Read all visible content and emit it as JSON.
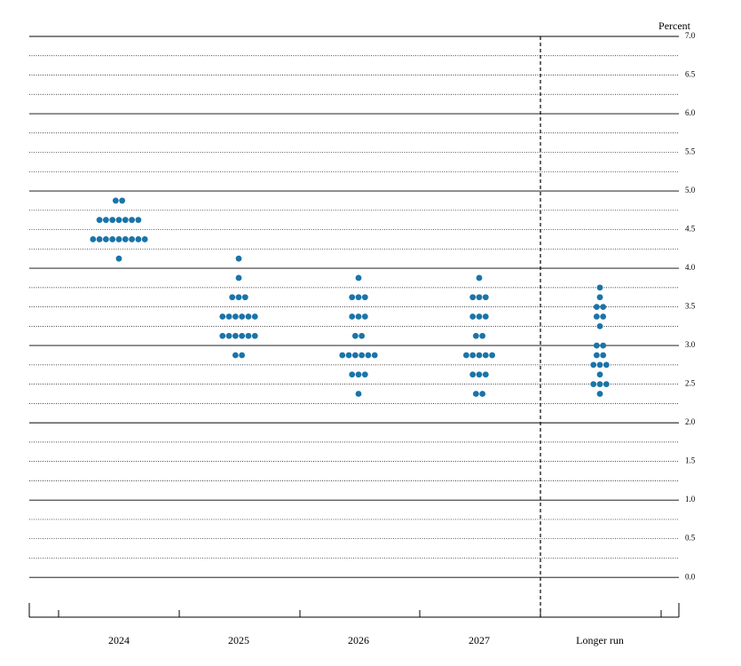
{
  "chart_data": {
    "type": "dot",
    "y_label": "Percent",
    "categories": [
      "2024",
      "2025",
      "2026",
      "2027",
      "Longer run"
    ],
    "color": "#1a74a8",
    "values": [
      [
        4.875,
        4.875,
        4.625,
        4.625,
        4.625,
        4.625,
        4.625,
        4.625,
        4.625,
        4.375,
        4.375,
        4.375,
        4.375,
        4.375,
        4.375,
        4.375,
        4.375,
        4.375,
        4.125
      ],
      [
        4.125,
        3.875,
        3.625,
        3.625,
        3.625,
        3.375,
        3.375,
        3.375,
        3.375,
        3.375,
        3.375,
        3.125,
        3.125,
        3.125,
        3.125,
        3.125,
        3.125,
        2.875,
        2.875
      ],
      [
        3.875,
        3.625,
        3.625,
        3.625,
        3.375,
        3.375,
        3.375,
        3.125,
        3.125,
        2.875,
        2.875,
        2.875,
        2.875,
        2.875,
        2.875,
        2.625,
        2.625,
        2.625,
        2.375
      ],
      [
        3.875,
        3.625,
        3.625,
        3.625,
        3.375,
        3.375,
        3.375,
        3.125,
        3.125,
        2.875,
        2.875,
        2.875,
        2.875,
        2.875,
        2.625,
        2.625,
        2.625,
        2.375,
        2.375
      ],
      [
        3.75,
        3.625,
        3.5,
        3.5,
        3.375,
        3.375,
        3.25,
        3.0,
        3.0,
        2.875,
        2.875,
        2.75,
        2.75,
        2.75,
        2.625,
        2.5,
        2.5,
        2.5,
        2.375
      ]
    ],
    "ylim": [
      -0.4,
      7.0
    ],
    "yticks": [
      {
        "value": 0,
        "label": "0.0"
      },
      {
        "value": 0.5,
        "label": "0.5"
      },
      {
        "value": 1,
        "label": "1.0"
      },
      {
        "value": 1.5,
        "label": "1.5"
      },
      {
        "value": 2,
        "label": "2.0"
      },
      {
        "value": 2.5,
        "label": "2.5"
      },
      {
        "value": 3,
        "label": "3.0"
      },
      {
        "value": 3.5,
        "label": "3.5"
      },
      {
        "value": 4,
        "label": "4.0"
      },
      {
        "value": 4.5,
        "label": "4.5"
      },
      {
        "value": 5,
        "label": "5.0"
      },
      {
        "value": 5.5,
        "label": "5.5"
      },
      {
        "value": 6,
        "label": "6.0"
      },
      {
        "value": 6.5,
        "label": "6.5"
      },
      {
        "value": 7,
        "label": "7.0"
      }
    ],
    "minor_yticks": [
      0.25,
      0.75,
      1.25,
      1.75,
      2.25,
      2.75,
      3.25,
      3.75,
      4.25,
      4.75,
      5.25,
      5.75,
      6.25,
      6.75
    ],
    "grid": true
  }
}
